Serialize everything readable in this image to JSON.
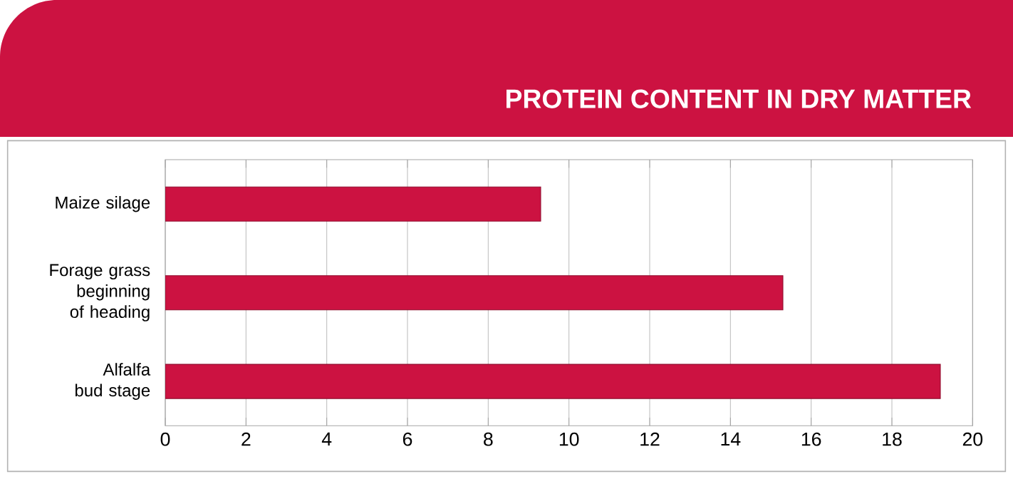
{
  "chart_data": {
    "type": "bar",
    "orientation": "horizontal",
    "title": "PROTEIN CONTENT IN DRY MATTER",
    "categories": [
      "Maize silage",
      "Forage grass beginning of heading",
      "Alfalfa bud stage"
    ],
    "values": [
      9.3,
      15.3,
      19.2
    ],
    "color": "#cc1241",
    "xlim": [
      0,
      20
    ],
    "xticks": [
      0,
      2,
      4,
      6,
      8,
      10,
      12,
      14,
      16,
      18,
      20
    ],
    "grid": "x"
  }
}
